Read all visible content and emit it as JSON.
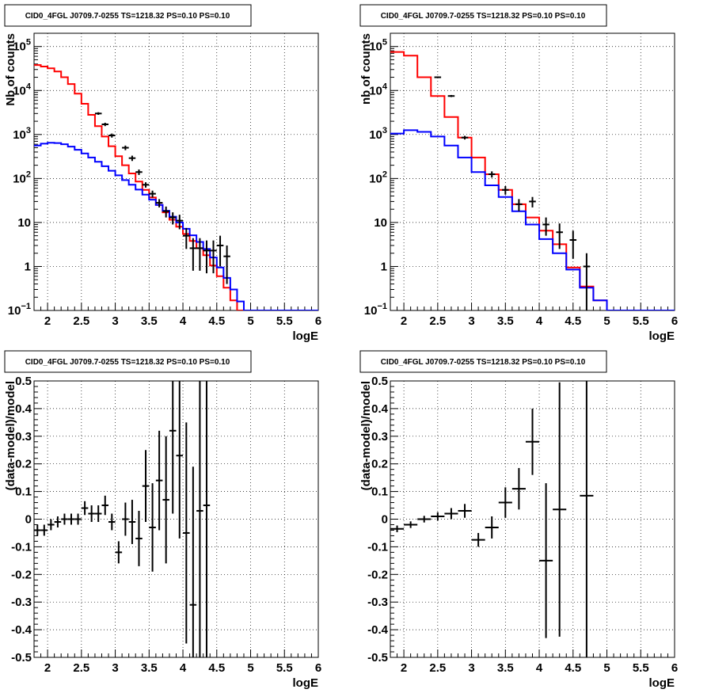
{
  "colors": {
    "data": "#000000",
    "total_model": "#ff0000",
    "source_model": "#0000ff",
    "background": "#ffffff"
  },
  "chart_data": [
    {
      "type": "line",
      "title": "CID0_4FGL J0709.7-0255 TS=1218.32 PS=0.10 PS=0.10",
      "xlabel": "logE",
      "ylabel": "Nb of counts",
      "xlim": [
        1.8,
        6.0
      ],
      "ylim": [
        0.1,
        200000
      ],
      "yscale": "log",
      "grid": true,
      "x_ticks": [
        "2",
        "2.5",
        "3",
        "3.5",
        "4",
        "4.5",
        "5",
        "5.5",
        "6"
      ],
      "y_ticks": [
        "10^-1",
        "1",
        "10",
        "10^2",
        "10^3",
        "10^4",
        "10^5"
      ],
      "bin_edges": [
        1.8,
        1.9,
        2.0,
        2.1,
        2.2,
        2.3,
        2.4,
        2.5,
        2.6,
        2.7,
        2.8,
        2.9,
        3.0,
        3.1,
        3.2,
        3.3,
        3.4,
        3.5,
        3.6,
        3.7,
        3.8,
        3.9,
        4.0,
        4.1,
        4.2,
        4.3,
        4.4,
        4.5,
        4.6,
        4.7,
        4.8,
        4.9,
        5.0,
        5.1,
        5.2,
        5.3,
        5.4,
        5.5,
        5.6,
        5.7,
        5.8,
        5.9,
        6.0
      ],
      "series": [
        {
          "name": "model total",
          "color": "#ff0000",
          "style": "step",
          "values": [
            38000,
            35000,
            32000,
            27000,
            20000,
            14000,
            8500,
            5000,
            2800,
            1550,
            900,
            540,
            320,
            200,
            130,
            85,
            55,
            37,
            25,
            17,
            11.5,
            8,
            5.5,
            3.8,
            2.6,
            1.8,
            1.05,
            0.6,
            0.33,
            0.17,
            0.1,
            0.1,
            0.1,
            0.1,
            0.1,
            0.1,
            0.1,
            0.1,
            0.1,
            0.1,
            0.1,
            0.1
          ]
        },
        {
          "name": "model source",
          "color": "#0000ff",
          "style": "step",
          "values": [
            560,
            620,
            650,
            640,
            600,
            530,
            450,
            370,
            300,
            240,
            190,
            150,
            118,
            92,
            72,
            56,
            43,
            33,
            25,
            18.5,
            13.5,
            10,
            7.2,
            5.1,
            3.6,
            2.5,
            1.6,
            0.95,
            0.55,
            0.3,
            0.16,
            0.1,
            0.1,
            0.1,
            0.1,
            0.1,
            0.1,
            0.1,
            0.1,
            0.1,
            0.1,
            0.1
          ]
        },
        {
          "name": "data",
          "color": "#000000",
          "style": "errorbar",
          "x": [
            2.75,
            2.85,
            2.95,
            3.15,
            3.25,
            3.35,
            3.45,
            3.55,
            3.65,
            3.75,
            3.85,
            3.95,
            4.05,
            4.15,
            4.25,
            4.35,
            4.45,
            4.55,
            4.65
          ],
          "values": [
            3000,
            1700,
            950,
            500,
            290,
            140,
            72,
            45,
            28,
            18,
            13,
            11,
            5,
            2.6,
            2.6,
            2.3,
            2.3,
            3,
            1.7
          ],
          "err_low": [
            200,
            150,
            100,
            60,
            40,
            20,
            10,
            8,
            6,
            5,
            4,
            4,
            2.5,
            1.8,
            1.8,
            1.6,
            1.6,
            2,
            1.3
          ],
          "err_high": [
            200,
            150,
            100,
            60,
            40,
            20,
            10,
            8,
            6,
            5,
            4,
            4,
            2.5,
            1.8,
            1.8,
            1.6,
            1.6,
            2,
            1.3
          ]
        }
      ]
    },
    {
      "type": "line",
      "title": "CID0_4FGL J0709.7-0255 TS=1218.32 PS=0.10 PS=0.10",
      "xlabel": "logE",
      "ylabel": "nb of counts",
      "xlim": [
        1.8,
        6.0
      ],
      "ylim": [
        0.1,
        200000
      ],
      "yscale": "log",
      "grid": true,
      "x_ticks": [
        "2",
        "2.5",
        "3",
        "3.5",
        "4",
        "4.5",
        "5",
        "5.5",
        "6"
      ],
      "y_ticks": [
        "10^-1",
        "1",
        "10",
        "10^2",
        "10^3",
        "10^4",
        "10^5"
      ],
      "bin_edges": [
        1.8,
        2.0,
        2.2,
        2.4,
        2.6,
        2.8,
        3.0,
        3.2,
        3.4,
        3.6,
        3.8,
        4.0,
        4.2,
        4.4,
        4.6,
        4.8,
        5.0,
        5.2,
        5.4,
        5.6,
        5.8,
        6.0
      ],
      "series": [
        {
          "name": "model total",
          "color": "#ff0000",
          "style": "step",
          "values": [
            75000,
            62000,
            20000,
            7500,
            2500,
            850,
            300,
            125,
            55,
            26,
            13,
            6.5,
            3.2,
            0.95,
            0.35,
            0.17,
            0.1,
            0.1,
            0.1,
            0.1,
            0.1
          ]
        },
        {
          "name": "model source",
          "color": "#0000ff",
          "style": "step",
          "values": [
            1050,
            1250,
            1150,
            900,
            560,
            300,
            140,
            70,
            38,
            18,
            9,
            4.2,
            2.0,
            0.85,
            0.33,
            0.17,
            0.1,
            0.1,
            0.1,
            0.1,
            0.1
          ]
        },
        {
          "name": "data",
          "color": "#000000",
          "style": "errorbar",
          "x": [
            2.5,
            2.7,
            2.9,
            3.3,
            3.5,
            3.7,
            3.9,
            4.1,
            4.3,
            4.5,
            4.7
          ],
          "values": [
            20000,
            7500,
            850,
            125,
            55,
            26,
            30,
            9,
            6,
            4,
            1
          ],
          "err_low": [
            800,
            400,
            80,
            20,
            12,
            8,
            8,
            4,
            3.5,
            2.5,
            1
          ],
          "err_high": [
            800,
            400,
            80,
            20,
            12,
            8,
            8,
            4,
            3.5,
            2.5,
            1
          ]
        }
      ]
    },
    {
      "type": "scatter",
      "title": "CID0_4FGL J0709.7-0255 TS=1218.32 PS=0.10 PS=0.10",
      "xlabel": "logE",
      "ylabel": "(data-model)/model",
      "xlim": [
        1.8,
        6.0
      ],
      "ylim": [
        -0.5,
        0.5
      ],
      "grid": true,
      "x_ticks": [
        "2",
        "2.5",
        "3",
        "3.5",
        "4",
        "4.5",
        "5",
        "5.5",
        "6"
      ],
      "y_ticks": [
        "-0.5",
        "-0.4",
        "-0.3",
        "-0.2",
        "-0.1",
        "0",
        "0.1",
        "0.2",
        "0.3",
        "0.4",
        "0.5"
      ],
      "series": [
        {
          "name": "residual",
          "color": "#000000",
          "style": "errorbar",
          "xerr": 0.05,
          "x": [
            1.85,
            1.95,
            2.05,
            2.15,
            2.25,
            2.35,
            2.45,
            2.55,
            2.65,
            2.75,
            2.85,
            2.95,
            3.05,
            3.15,
            3.25,
            3.35,
            3.45,
            3.55,
            3.65,
            3.75,
            3.85,
            3.95,
            4.05,
            4.15,
            4.25,
            4.35
          ],
          "values": [
            -0.04,
            -0.04,
            -0.02,
            -0.01,
            0.0,
            0.0,
            0.0,
            0.04,
            0.02,
            0.02,
            0.05,
            -0.01,
            -0.12,
            0.0,
            -0.01,
            -0.07,
            0.12,
            -0.03,
            0.14,
            0.07,
            0.32,
            0.23,
            -0.05,
            -0.31,
            0.03,
            0.05
          ],
          "err": [
            0.02,
            0.02,
            0.02,
            0.02,
            0.02,
            0.02,
            0.02,
            0.025,
            0.03,
            0.03,
            0.035,
            0.03,
            0.04,
            0.06,
            0.08,
            0.1,
            0.13,
            0.16,
            0.18,
            0.23,
            0.3,
            0.3,
            0.4,
            0.5,
            0.55,
            0.6
          ]
        }
      ]
    },
    {
      "type": "scatter",
      "title": "CID0_4FGL J0709.7-0255 TS=1218.32 PS=0.10 PS=0.10",
      "xlabel": "logE",
      "ylabel": "(data-model)/model",
      "xlim": [
        1.8,
        6.0
      ],
      "ylim": [
        -0.5,
        0.5
      ],
      "grid": true,
      "x_ticks": [
        "2",
        "2.5",
        "3",
        "3.5",
        "4",
        "4.5",
        "5",
        "5.5",
        "6"
      ],
      "y_ticks": [
        "-0.5",
        "-0.4",
        "-0.3",
        "-0.2",
        "-0.1",
        "0",
        "0.1",
        "0.2",
        "0.3",
        "0.4",
        "0.5"
      ],
      "series": [
        {
          "name": "residual",
          "color": "#000000",
          "style": "errorbar",
          "xerr": 0.1,
          "x": [
            1.9,
            2.1,
            2.3,
            2.5,
            2.7,
            2.9,
            3.1,
            3.3,
            3.5,
            3.7,
            3.9,
            4.1,
            4.3,
            4.7
          ],
          "values": [
            -0.035,
            -0.02,
            0.0,
            0.01,
            0.02,
            0.03,
            -0.075,
            -0.03,
            0.06,
            0.11,
            0.28,
            -0.15,
            0.035,
            0.085
          ],
          "err": [
            0.012,
            0.012,
            0.012,
            0.015,
            0.02,
            0.025,
            0.025,
            0.04,
            0.055,
            0.075,
            0.12,
            0.28,
            0.46,
            0.95
          ]
        }
      ]
    }
  ]
}
